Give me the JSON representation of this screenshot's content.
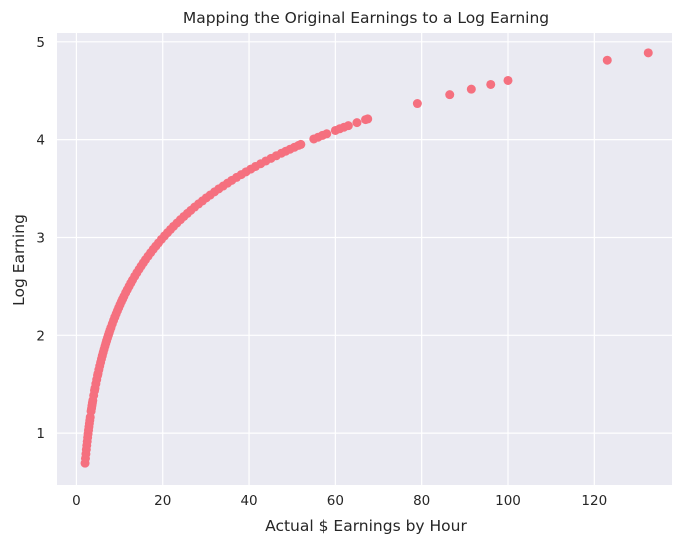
{
  "chart_data": {
    "type": "scatter",
    "title": "Mapping the Original Earnings to a Log Earning",
    "xlabel": "Actual $ Earnings by Hour",
    "ylabel": "Log Earning",
    "xlim": [
      -4.5,
      138
    ],
    "ylim": [
      0.47,
      5.09
    ],
    "xticks": [
      0,
      20,
      40,
      60,
      80,
      100,
      120
    ],
    "yticks": [
      1,
      2,
      3,
      4,
      5
    ],
    "x_tick_labels": [
      "0",
      "20",
      "40",
      "60",
      "80",
      "100",
      "120"
    ],
    "y_tick_labels": [
      "1",
      "2",
      "3",
      "4",
      "5"
    ],
    "grid": true,
    "point_color": "#f5707f",
    "background_color": "#eaeaf2",
    "series": [
      {
        "x": [
          2.0,
          2.1,
          2.2,
          2.3,
          2.4,
          2.5,
          2.6,
          2.7,
          2.8,
          2.9,
          3.0,
          3.1,
          3.2,
          3.4,
          3.5,
          3.6,
          3.7,
          3.8,
          4.0,
          4.2,
          4.3,
          4.5,
          4.7,
          4.9,
          5.0,
          5.2,
          5.4,
          5.6,
          5.8,
          6.0,
          6.2,
          6.4,
          6.6,
          6.8,
          7.0,
          7.2,
          7.4,
          7.6,
          7.8,
          8.0,
          8.3,
          8.6,
          8.9,
          9.2,
          9.5,
          9.8,
          10.1,
          10.4,
          10.7,
          11.0,
          11.4,
          11.8,
          12.2,
          12.6,
          13.0,
          13.5,
          14.0,
          14.5,
          15.0,
          15.5,
          16.0,
          16.6,
          17.2,
          17.8,
          18.4,
          19.0,
          19.7,
          20.4,
          21.1,
          21.8,
          22.5,
          23.3,
          24.1,
          24.9,
          25.7,
          26.5,
          27.4,
          28.3,
          29.2,
          30.1,
          31.0,
          32.0,
          33.0,
          34.0,
          35.0,
          36.0,
          37.1,
          38.2,
          39.3,
          40.4,
          41.5,
          42.7,
          43.9,
          45.1,
          46.3,
          47.5,
          48.5,
          49.5,
          50.5,
          51.5,
          52.0,
          55.0,
          56.0,
          57.0,
          58.0,
          60.0,
          61.0,
          62.0,
          63.0,
          65.0,
          67.0,
          67.5,
          79.0,
          86.5,
          91.5,
          96.0,
          100.0,
          123.0,
          132.5
        ],
        "y": [
          0.693,
          0.742,
          0.788,
          0.833,
          0.875,
          0.916,
          0.956,
          0.993,
          1.03,
          1.065,
          1.099,
          1.131,
          1.163,
          1.224,
          1.253,
          1.281,
          1.308,
          1.335,
          1.386,
          1.435,
          1.459,
          1.504,
          1.548,
          1.589,
          1.609,
          1.649,
          1.686,
          1.723,
          1.758,
          1.792,
          1.825,
          1.856,
          1.887,
          1.917,
          1.946,
          1.974,
          2.001,
          2.028,
          2.054,
          2.079,
          2.116,
          2.152,
          2.186,
          2.219,
          2.251,
          2.282,
          2.313,
          2.342,
          2.37,
          2.398,
          2.434,
          2.468,
          2.501,
          2.534,
          2.565,
          2.603,
          2.639,
          2.674,
          2.708,
          2.741,
          2.773,
          2.809,
          2.845,
          2.879,
          2.912,
          2.944,
          2.981,
          3.016,
          3.049,
          3.082,
          3.114,
          3.148,
          3.182,
          3.215,
          3.246,
          3.277,
          3.311,
          3.343,
          3.374,
          3.405,
          3.434,
          3.466,
          3.497,
          3.526,
          3.555,
          3.584,
          3.614,
          3.643,
          3.671,
          3.699,
          3.726,
          3.754,
          3.782,
          3.809,
          3.835,
          3.861,
          3.882,
          3.902,
          3.922,
          3.942,
          3.951,
          4.007,
          4.025,
          4.043,
          4.06,
          4.094,
          4.111,
          4.127,
          4.143,
          4.174,
          4.205,
          4.212,
          4.369,
          4.46,
          4.516,
          4.564,
          4.605,
          4.812,
          4.887
        ]
      }
    ]
  }
}
